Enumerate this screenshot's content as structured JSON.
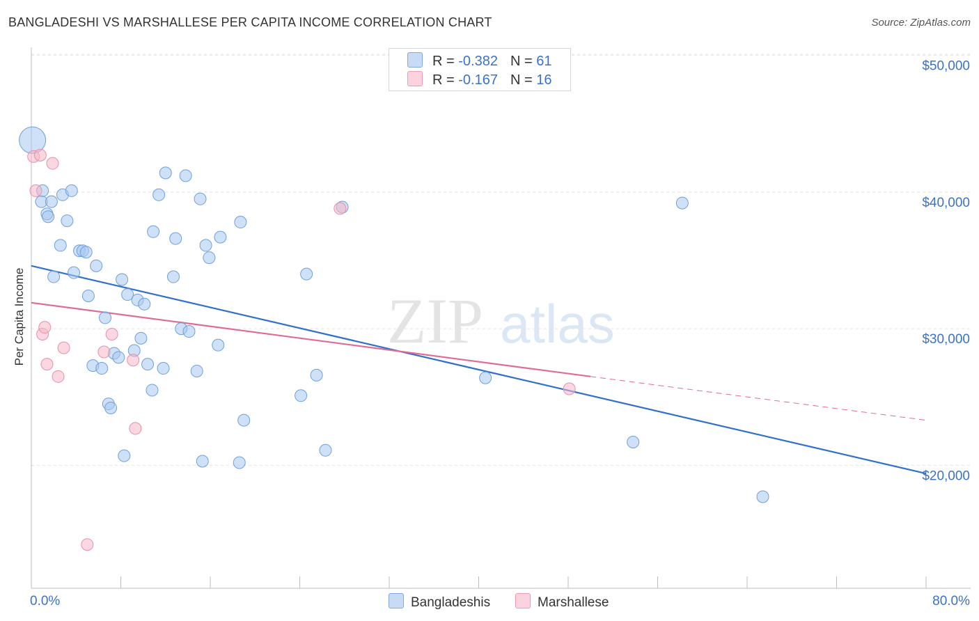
{
  "header": {
    "title": "BANGLADESHI VS MARSHALLESE PER CAPITA INCOME CORRELATION CHART",
    "source": "Source: ZipAtlas.com"
  },
  "watermark": {
    "part1": "ZIP",
    "part2": "atlas"
  },
  "legend": {
    "rows": [
      {
        "r_label": "R = ",
        "r_value": "-0.382",
        "n_label": "N = ",
        "n_value": "61",
        "color": "#a8c8f0"
      },
      {
        "r_label": "R = ",
        "r_value": "-0.167",
        "n_label": "N = ",
        "n_value": "16",
        "color": "#f6b7c8"
      }
    ]
  },
  "chart_data": {
    "type": "scatter",
    "title": "BANGLADESHI VS MARSHALLESE PER CAPITA INCOME CORRELATION CHART",
    "xlabel": "",
    "ylabel": "Per Capita Income",
    "xlim": [
      0,
      80
    ],
    "ylim": [
      11000,
      51000
    ],
    "x_tick_labels": [
      "0.0%",
      "80.0%"
    ],
    "y_ticks": [
      20000,
      30000,
      40000,
      50000
    ],
    "y_tick_labels": [
      "$20,000",
      "$30,000",
      "$40,000",
      "$50,000"
    ],
    "grid": true,
    "legend_position": "top-center",
    "series": [
      {
        "name": "Bangladeshis",
        "color": "#a8c8f0",
        "stroke": "#6f9fdc",
        "trend": {
          "x": [
            0,
            80
          ],
          "y": [
            34600,
            19400
          ],
          "color": "#2f6fcf"
        },
        "points": [
          {
            "x": 0.1,
            "y": 43800,
            "big": true
          },
          {
            "x": 0.9,
            "y": 39300
          },
          {
            "x": 1.0,
            "y": 40100
          },
          {
            "x": 1.4,
            "y": 38400
          },
          {
            "x": 1.5,
            "y": 38200
          },
          {
            "x": 1.8,
            "y": 39300
          },
          {
            "x": 2.0,
            "y": 33800
          },
          {
            "x": 2.6,
            "y": 36100
          },
          {
            "x": 2.8,
            "y": 39800
          },
          {
            "x": 3.2,
            "y": 37900
          },
          {
            "x": 3.6,
            "y": 40100
          },
          {
            "x": 3.8,
            "y": 34100
          },
          {
            "x": 4.3,
            "y": 35700
          },
          {
            "x": 4.6,
            "y": 35700
          },
          {
            "x": 4.9,
            "y": 35600
          },
          {
            "x": 5.1,
            "y": 32400
          },
          {
            "x": 5.5,
            "y": 27300
          },
          {
            "x": 5.8,
            "y": 34600
          },
          {
            "x": 6.3,
            "y": 27100
          },
          {
            "x": 6.6,
            "y": 30800
          },
          {
            "x": 6.9,
            "y": 24500
          },
          {
            "x": 7.1,
            "y": 24200
          },
          {
            "x": 7.4,
            "y": 28200
          },
          {
            "x": 7.8,
            "y": 27900
          },
          {
            "x": 8.1,
            "y": 33600
          },
          {
            "x": 8.3,
            "y": 20700
          },
          {
            "x": 8.6,
            "y": 32500
          },
          {
            "x": 9.2,
            "y": 28400
          },
          {
            "x": 9.5,
            "y": 32100
          },
          {
            "x": 9.8,
            "y": 29300
          },
          {
            "x": 10.1,
            "y": 31800
          },
          {
            "x": 10.4,
            "y": 27400
          },
          {
            "x": 10.8,
            "y": 25500
          },
          {
            "x": 10.9,
            "y": 37100
          },
          {
            "x": 11.4,
            "y": 39800
          },
          {
            "x": 11.8,
            "y": 27100
          },
          {
            "x": 12.0,
            "y": 41400
          },
          {
            "x": 12.7,
            "y": 33800
          },
          {
            "x": 12.9,
            "y": 36600
          },
          {
            "x": 13.4,
            "y": 30000
          },
          {
            "x": 13.8,
            "y": 41200
          },
          {
            "x": 14.1,
            "y": 29800
          },
          {
            "x": 14.8,
            "y": 26900
          },
          {
            "x": 15.1,
            "y": 39500
          },
          {
            "x": 15.3,
            "y": 20300
          },
          {
            "x": 15.6,
            "y": 36100
          },
          {
            "x": 15.9,
            "y": 35200
          },
          {
            "x": 16.7,
            "y": 28800
          },
          {
            "x": 16.9,
            "y": 36700
          },
          {
            "x": 18.6,
            "y": 20200
          },
          {
            "x": 18.7,
            "y": 37800
          },
          {
            "x": 19.0,
            "y": 23300
          },
          {
            "x": 24.1,
            "y": 25100
          },
          {
            "x": 24.6,
            "y": 34000
          },
          {
            "x": 25.5,
            "y": 26600
          },
          {
            "x": 26.3,
            "y": 21100
          },
          {
            "x": 27.8,
            "y": 38900
          },
          {
            "x": 40.6,
            "y": 26400
          },
          {
            "x": 53.8,
            "y": 21700
          },
          {
            "x": 58.2,
            "y": 39200
          },
          {
            "x": 65.4,
            "y": 17700
          }
        ]
      },
      {
        "name": "Marshallese",
        "color": "#f6b7c8",
        "stroke": "#e890a8",
        "trend": {
          "x": [
            0,
            50
          ],
          "y": [
            31900,
            26500
          ],
          "color": "#e06a93",
          "dash_to": {
            "x": 80,
            "y": 23300
          }
        },
        "points": [
          {
            "x": 0.2,
            "y": 42600
          },
          {
            "x": 0.4,
            "y": 40100
          },
          {
            "x": 0.8,
            "y": 42700
          },
          {
            "x": 1.0,
            "y": 29600
          },
          {
            "x": 1.2,
            "y": 30100
          },
          {
            "x": 1.4,
            "y": 27400
          },
          {
            "x": 1.9,
            "y": 42100
          },
          {
            "x": 2.4,
            "y": 26500
          },
          {
            "x": 2.9,
            "y": 28600
          },
          {
            "x": 5.0,
            "y": 14200
          },
          {
            "x": 6.5,
            "y": 28300
          },
          {
            "x": 7.2,
            "y": 29600
          },
          {
            "x": 9.1,
            "y": 27700
          },
          {
            "x": 9.3,
            "y": 22700
          },
          {
            "x": 27.6,
            "y": 38800
          },
          {
            "x": 48.1,
            "y": 25600
          }
        ]
      }
    ]
  }
}
